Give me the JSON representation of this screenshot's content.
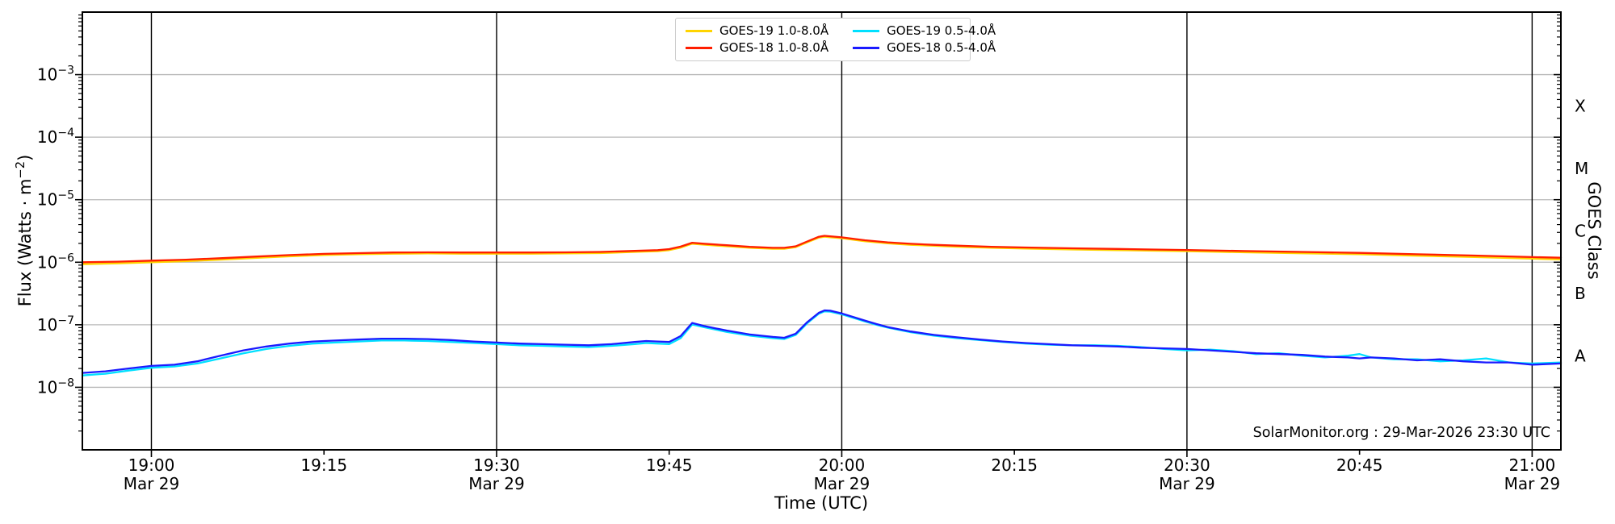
{
  "annotation": "SolarMonitor.org : 29-Mar-2026 23:30 UTC",
  "chart_data": {
    "type": "line",
    "title": "",
    "xlabel": "Time (UTC)",
    "ylabel": {
      "prefix": "Flux (Watts · m",
      "sup": "−2",
      "suffix": ")"
    },
    "ylabel_right": "GOES Class",
    "x_axis": {
      "unit": "minutes relative to 19:00 UTC Mar 29",
      "min": -6,
      "max": 122.5,
      "ticks": [
        {
          "t": 0,
          "label": "19:00",
          "date": "Mar 29"
        },
        {
          "t": 15,
          "label": "19:15"
        },
        {
          "t": 30,
          "label": "19:30",
          "date": "Mar 29"
        },
        {
          "t": 45,
          "label": "19:45"
        },
        {
          "t": 60,
          "label": "20:00",
          "date": "Mar 29"
        },
        {
          "t": 75,
          "label": "20:15"
        },
        {
          "t": 90,
          "label": "20:30",
          "date": "Mar 29"
        },
        {
          "t": 105,
          "label": "20:45"
        },
        {
          "t": 120,
          "label": "21:00",
          "date": "Mar 29"
        }
      ]
    },
    "y_axis": {
      "scale": "log",
      "min": 1e-09,
      "max": 0.01,
      "tick_exponents": [
        -3,
        -4,
        -5,
        -6,
        -7,
        -8
      ]
    },
    "goes_classes": [
      {
        "label": "X",
        "exp": -3.5
      },
      {
        "label": "M",
        "exp": -4.5
      },
      {
        "label": "C",
        "exp": -5.5
      },
      {
        "label": "B",
        "exp": -6.5
      },
      {
        "label": "A",
        "exp": -7.5
      }
    ],
    "grid": {
      "horizontal_color": "#b8b8b8",
      "vertical_color": "#000000"
    },
    "legend_position": "top-center",
    "series": [
      {
        "name": "goes-19-long",
        "label": "GOES-19 1.0-8.0Å",
        "color": "#ffd400",
        "points": [
          [
            -6,
            9.3e-07
          ],
          [
            -3,
            9.6e-07
          ],
          [
            0,
            1e-06
          ],
          [
            3,
            1.04e-06
          ],
          [
            6,
            1.1e-06
          ],
          [
            9,
            1.17e-06
          ],
          [
            12,
            1.24e-06
          ],
          [
            15,
            1.3e-06
          ],
          [
            18,
            1.34e-06
          ],
          [
            21,
            1.37e-06
          ],
          [
            24,
            1.38e-06
          ],
          [
            27,
            1.37e-06
          ],
          [
            30,
            1.37e-06
          ],
          [
            33,
            1.37e-06
          ],
          [
            36,
            1.38e-06
          ],
          [
            39,
            1.4e-06
          ],
          [
            42,
            1.46e-06
          ],
          [
            44,
            1.5e-06
          ],
          [
            45,
            1.56e-06
          ],
          [
            46,
            1.71e-06
          ],
          [
            47,
            1.98e-06
          ],
          [
            48,
            1.91e-06
          ],
          [
            50,
            1.8e-06
          ],
          [
            52,
            1.7e-06
          ],
          [
            54,
            1.64e-06
          ],
          [
            55,
            1.64e-06
          ],
          [
            56,
            1.74e-06
          ],
          [
            57,
            2.08e-06
          ],
          [
            58,
            2.47e-06
          ],
          [
            58.5,
            2.56e-06
          ],
          [
            59,
            2.51e-06
          ],
          [
            60,
            2.42e-06
          ],
          [
            62,
            2.17e-06
          ],
          [
            64,
            2e-06
          ],
          [
            66,
            1.9e-06
          ],
          [
            68,
            1.83e-06
          ],
          [
            70,
            1.77e-06
          ],
          [
            73,
            1.7e-06
          ],
          [
            76,
            1.65e-06
          ],
          [
            80,
            1.6e-06
          ],
          [
            84,
            1.56e-06
          ],
          [
            87,
            1.53e-06
          ],
          [
            90,
            1.5e-06
          ],
          [
            95,
            1.44e-06
          ],
          [
            100,
            1.39e-06
          ],
          [
            105,
            1.34e-06
          ],
          [
            110,
            1.27e-06
          ],
          [
            115,
            1.21e-06
          ],
          [
            120,
            1.14e-06
          ],
          [
            122.5,
            1.11e-06
          ]
        ]
      },
      {
        "name": "goes-18-long",
        "label": "GOES-18 1.0-8.0Å",
        "color": "#ff1e00",
        "points": [
          [
            -6,
            1e-06
          ],
          [
            -3,
            1.02e-06
          ],
          [
            0,
            1.06e-06
          ],
          [
            3,
            1.1e-06
          ],
          [
            6,
            1.16e-06
          ],
          [
            9,
            1.23e-06
          ],
          [
            12,
            1.3e-06
          ],
          [
            15,
            1.36e-06
          ],
          [
            18,
            1.4e-06
          ],
          [
            21,
            1.43e-06
          ],
          [
            24,
            1.44e-06
          ],
          [
            27,
            1.43e-06
          ],
          [
            30,
            1.43e-06
          ],
          [
            33,
            1.43e-06
          ],
          [
            36,
            1.44e-06
          ],
          [
            39,
            1.46e-06
          ],
          [
            42,
            1.52e-06
          ],
          [
            44,
            1.56e-06
          ],
          [
            45,
            1.62e-06
          ],
          [
            46,
            1.78e-06
          ],
          [
            47,
            2.05e-06
          ],
          [
            48,
            1.98e-06
          ],
          [
            50,
            1.87e-06
          ],
          [
            52,
            1.76e-06
          ],
          [
            54,
            1.7e-06
          ],
          [
            55,
            1.7e-06
          ],
          [
            56,
            1.8e-06
          ],
          [
            57,
            2.15e-06
          ],
          [
            58,
            2.55e-06
          ],
          [
            58.5,
            2.65e-06
          ],
          [
            59,
            2.6e-06
          ],
          [
            60,
            2.5e-06
          ],
          [
            62,
            2.25e-06
          ],
          [
            64,
            2.08e-06
          ],
          [
            66,
            1.97e-06
          ],
          [
            68,
            1.9e-06
          ],
          [
            70,
            1.84e-06
          ],
          [
            73,
            1.77e-06
          ],
          [
            76,
            1.72e-06
          ],
          [
            80,
            1.67e-06
          ],
          [
            84,
            1.63e-06
          ],
          [
            87,
            1.6e-06
          ],
          [
            90,
            1.57e-06
          ],
          [
            95,
            1.51e-06
          ],
          [
            100,
            1.46e-06
          ],
          [
            105,
            1.41e-06
          ],
          [
            110,
            1.34e-06
          ],
          [
            115,
            1.28e-06
          ],
          [
            120,
            1.21e-06
          ],
          [
            122.5,
            1.18e-06
          ]
        ]
      },
      {
        "name": "goes-19-short",
        "label": "GOES-19 0.5-4.0Å",
        "color": "#00e0ff",
        "points": [
          [
            -6,
            1.55e-08
          ],
          [
            -4,
            1.65e-08
          ],
          [
            -2,
            1.85e-08
          ],
          [
            0,
            2.05e-08
          ],
          [
            2,
            2.15e-08
          ],
          [
            4,
            2.4e-08
          ],
          [
            6,
            2.9e-08
          ],
          [
            8,
            3.5e-08
          ],
          [
            10,
            4.1e-08
          ],
          [
            12,
            4.6e-08
          ],
          [
            14,
            5e-08
          ],
          [
            16,
            5.2e-08
          ],
          [
            18,
            5.4e-08
          ],
          [
            20,
            5.6e-08
          ],
          [
            22,
            5.6e-08
          ],
          [
            24,
            5.5e-08
          ],
          [
            26,
            5.3e-08
          ],
          [
            28,
            5.1e-08
          ],
          [
            30,
            4.9e-08
          ],
          [
            32,
            4.7e-08
          ],
          [
            34,
            4.6e-08
          ],
          [
            36,
            4.5e-08
          ],
          [
            38,
            4.4e-08
          ],
          [
            40,
            4.6e-08
          ],
          [
            42,
            4.9e-08
          ],
          [
            43,
            5.1e-08
          ],
          [
            44,
            5e-08
          ],
          [
            45,
            4.9e-08
          ],
          [
            46,
            6.1e-08
          ],
          [
            47,
            1.01e-07
          ],
          [
            48,
            9.2e-08
          ],
          [
            49,
            8.4e-08
          ],
          [
            50,
            7.7e-08
          ],
          [
            52,
            6.7e-08
          ],
          [
            54,
            6.1e-08
          ],
          [
            55,
            5.9e-08
          ],
          [
            56,
            6.9e-08
          ],
          [
            57,
            1.06e-07
          ],
          [
            58,
            1.5e-07
          ],
          [
            58.5,
            1.64e-07
          ],
          [
            59,
            1.62e-07
          ],
          [
            60,
            1.47e-07
          ],
          [
            61,
            1.29e-07
          ],
          [
            62,
            1.13e-07
          ],
          [
            63,
            1e-07
          ],
          [
            64,
            9e-08
          ],
          [
            66,
            7.6e-08
          ],
          [
            68,
            6.7e-08
          ],
          [
            70,
            6.1e-08
          ],
          [
            72,
            5.7e-08
          ],
          [
            74,
            5.3e-08
          ],
          [
            76,
            5e-08
          ],
          [
            78,
            4.8e-08
          ],
          [
            80,
            4.7e-08
          ],
          [
            82,
            4.7e-08
          ],
          [
            84,
            4.6e-08
          ],
          [
            86,
            4.4e-08
          ],
          [
            88,
            4.1e-08
          ],
          [
            90,
            3.9e-08
          ],
          [
            92,
            4e-08
          ],
          [
            94,
            3.8e-08
          ],
          [
            96,
            3.4e-08
          ],
          [
            98,
            3.5e-08
          ],
          [
            100,
            3.2e-08
          ],
          [
            102,
            3e-08
          ],
          [
            104,
            3.2e-08
          ],
          [
            105,
            3.4e-08
          ],
          [
            106,
            3e-08
          ],
          [
            108,
            2.8e-08
          ],
          [
            110,
            2.8e-08
          ],
          [
            112,
            2.6e-08
          ],
          [
            114,
            2.7e-08
          ],
          [
            116,
            2.9e-08
          ],
          [
            118,
            2.5e-08
          ],
          [
            120,
            2.4e-08
          ],
          [
            122.5,
            2.5e-08
          ]
        ]
      },
      {
        "name": "goes-18-short",
        "label": "GOES-18 0.5-4.0Å",
        "color": "#1a1aff",
        "points": [
          [
            -6,
            1.7e-08
          ],
          [
            -4,
            1.8e-08
          ],
          [
            -2,
            2e-08
          ],
          [
            0,
            2.2e-08
          ],
          [
            2,
            2.3e-08
          ],
          [
            4,
            2.6e-08
          ],
          [
            6,
            3.2e-08
          ],
          [
            8,
            3.9e-08
          ],
          [
            10,
            4.5e-08
          ],
          [
            12,
            5e-08
          ],
          [
            14,
            5.4e-08
          ],
          [
            16,
            5.6e-08
          ],
          [
            18,
            5.8e-08
          ],
          [
            20,
            6e-08
          ],
          [
            22,
            6e-08
          ],
          [
            24,
            5.9e-08
          ],
          [
            26,
            5.7e-08
          ],
          [
            28,
            5.4e-08
          ],
          [
            30,
            5.2e-08
          ],
          [
            32,
            5e-08
          ],
          [
            34,
            4.9e-08
          ],
          [
            36,
            4.8e-08
          ],
          [
            38,
            4.7e-08
          ],
          [
            40,
            4.9e-08
          ],
          [
            42,
            5.3e-08
          ],
          [
            43,
            5.5e-08
          ],
          [
            44,
            5.4e-08
          ],
          [
            45,
            5.3e-08
          ],
          [
            46,
            6.6e-08
          ],
          [
            47,
            1.07e-07
          ],
          [
            48,
            9.6e-08
          ],
          [
            49,
            8.8e-08
          ],
          [
            50,
            8.1e-08
          ],
          [
            52,
            7e-08
          ],
          [
            54,
            6.4e-08
          ],
          [
            55,
            6.2e-08
          ],
          [
            56,
            7.2e-08
          ],
          [
            57,
            1.1e-07
          ],
          [
            58,
            1.55e-07
          ],
          [
            58.5,
            1.7e-07
          ],
          [
            59,
            1.68e-07
          ],
          [
            60,
            1.52e-07
          ],
          [
            61,
            1.33e-07
          ],
          [
            62,
            1.17e-07
          ],
          [
            63,
            1.03e-07
          ],
          [
            64,
            9.2e-08
          ],
          [
            66,
            7.8e-08
          ],
          [
            68,
            6.9e-08
          ],
          [
            70,
            6.3e-08
          ],
          [
            72,
            5.8e-08
          ],
          [
            74,
            5.4e-08
          ],
          [
            76,
            5.1e-08
          ],
          [
            78,
            4.9e-08
          ],
          [
            80,
            4.7e-08
          ],
          [
            82,
            4.6e-08
          ],
          [
            84,
            4.5e-08
          ],
          [
            86,
            4.3e-08
          ],
          [
            88,
            4.2e-08
          ],
          [
            90,
            4.1e-08
          ],
          [
            92,
            3.9e-08
          ],
          [
            94,
            3.7e-08
          ],
          [
            96,
            3.5e-08
          ],
          [
            98,
            3.4e-08
          ],
          [
            100,
            3.3e-08
          ],
          [
            102,
            3.1e-08
          ],
          [
            104,
            3e-08
          ],
          [
            105,
            2.9e-08
          ],
          [
            106,
            3e-08
          ],
          [
            108,
            2.9e-08
          ],
          [
            110,
            2.7e-08
          ],
          [
            112,
            2.8e-08
          ],
          [
            114,
            2.6e-08
          ],
          [
            116,
            2.5e-08
          ],
          [
            118,
            2.5e-08
          ],
          [
            120,
            2.3e-08
          ],
          [
            122.5,
            2.4e-08
          ]
        ]
      }
    ]
  }
}
